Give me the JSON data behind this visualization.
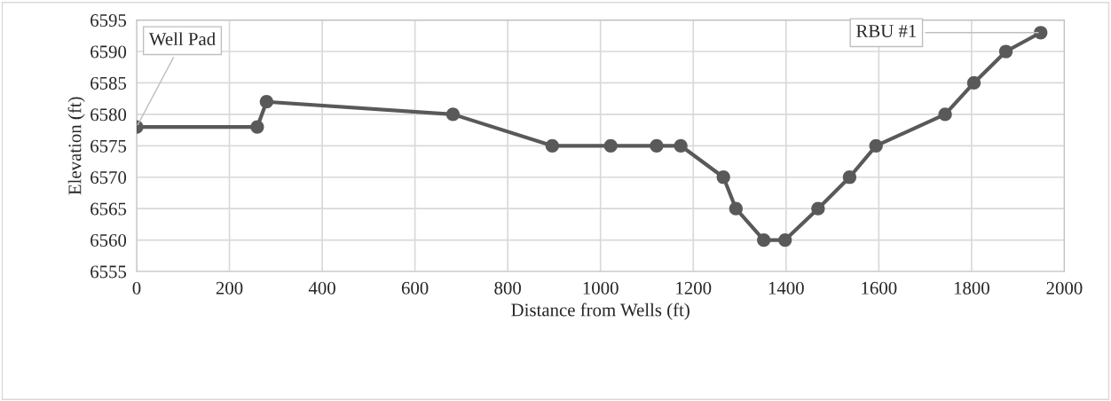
{
  "chart_data": {
    "type": "line",
    "xlabel": "Distance from Wells (ft)",
    "ylabel": "Elevation (ft)",
    "x": [
      0,
      260,
      280,
      682,
      896,
      1022,
      1121,
      1173,
      1265,
      1292,
      1352,
      1398,
      1469,
      1537,
      1594,
      1743,
      1805,
      1874,
      1949
    ],
    "series": [
      {
        "color": "#595959",
        "values": [
          6578,
          6578,
          6582,
          6580,
          6575,
          6575,
          6575,
          6575,
          6570,
          6565,
          6560,
          6560,
          6565,
          6570,
          6575,
          6580,
          6585,
          6590,
          6593
        ]
      }
    ],
    "xlim": [
      0,
      2000
    ],
    "xticks": [
      0,
      200,
      400,
      600,
      800,
      1000,
      1200,
      1400,
      1600,
      1800,
      2000
    ],
    "ylim": [
      6555,
      6595
    ],
    "yticks": [
      6555,
      6560,
      6565,
      6570,
      6575,
      6580,
      6585,
      6590,
      6595
    ],
    "grid": true,
    "marker": "circle",
    "line_style": "solid",
    "legend": false,
    "annotations": [
      {
        "text": "Well Pad",
        "x": 0,
        "y": 6578
      },
      {
        "text": "RBU #1",
        "x": 1949,
        "y": 6593
      }
    ]
  }
}
